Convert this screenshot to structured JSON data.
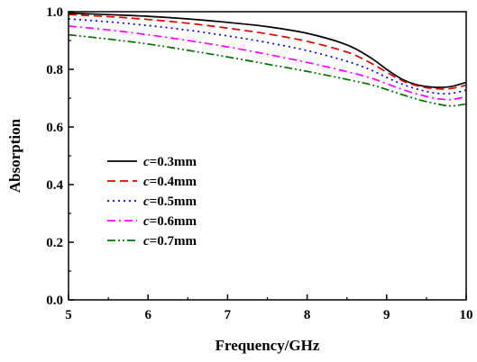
{
  "chart_data": {
    "type": "line",
    "xlabel": "Frequency/GHz",
    "ylabel": "Absorption",
    "xlim": [
      5,
      10
    ],
    "ylim": [
      0.0,
      1.0
    ],
    "xticks": [
      "5",
      "6",
      "7",
      "8",
      "9",
      "10"
    ],
    "yticks": [
      "0.0",
      "0.2",
      "0.4",
      "0.6",
      "0.8",
      "1.0"
    ],
    "grid": false,
    "legend_position": "left",
    "x": [
      5.0,
      5.5,
      6.0,
      6.5,
      7.0,
      7.5,
      8.0,
      8.5,
      8.8,
      9.0,
      9.2,
      9.4,
      9.6,
      9.8,
      10.0
    ],
    "series": [
      {
        "name_prefix": "c",
        "name_suffix": "=0.3mm",
        "color": "#000000",
        "dash": "solid",
        "values": [
          0.995,
          0.99,
          0.984,
          0.975,
          0.963,
          0.948,
          0.925,
          0.885,
          0.84,
          0.8,
          0.765,
          0.745,
          0.738,
          0.74,
          0.755
        ]
      },
      {
        "name_prefix": "c",
        "name_suffix": "=0.4mm",
        "color": "#e00000",
        "dash": "dash",
        "values": [
          0.99,
          0.983,
          0.973,
          0.96,
          0.943,
          0.923,
          0.897,
          0.86,
          0.822,
          0.79,
          0.76,
          0.742,
          0.733,
          0.733,
          0.745
        ]
      },
      {
        "name_prefix": "c",
        "name_suffix": "=0.5mm",
        "color": "#0000e0",
        "dash": "dot",
        "values": [
          0.975,
          0.965,
          0.952,
          0.936,
          0.916,
          0.893,
          0.865,
          0.828,
          0.798,
          0.772,
          0.748,
          0.73,
          0.718,
          0.716,
          0.728
        ]
      },
      {
        "name_prefix": "c",
        "name_suffix": "=0.6mm",
        "color": "#ff00ff",
        "dash": "dashdot",
        "values": [
          0.95,
          0.937,
          0.92,
          0.9,
          0.878,
          0.852,
          0.824,
          0.792,
          0.77,
          0.75,
          0.73,
          0.713,
          0.7,
          0.695,
          0.705
        ]
      },
      {
        "name_prefix": "c",
        "name_suffix": "=0.7mm",
        "color": "#007000",
        "dash": "dashdotdot",
        "values": [
          0.92,
          0.905,
          0.888,
          0.866,
          0.843,
          0.818,
          0.793,
          0.765,
          0.747,
          0.73,
          0.712,
          0.695,
          0.682,
          0.673,
          0.68
        ]
      }
    ]
  }
}
